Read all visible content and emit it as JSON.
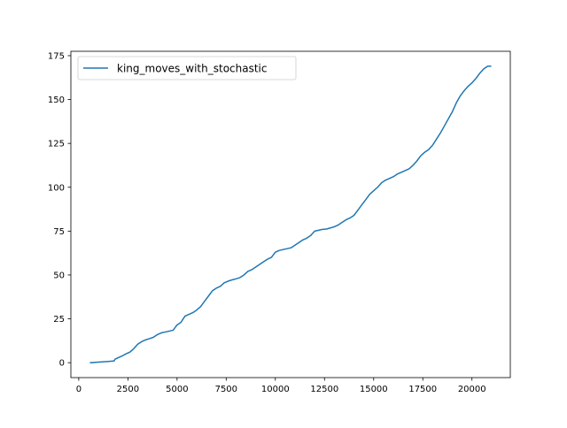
{
  "chart_data": {
    "type": "line",
    "title": "",
    "xlabel": "",
    "ylabel": "",
    "xlim": [
      -400,
      21950
    ],
    "ylim": [
      -8.5,
      177.5
    ],
    "xticks": [
      0,
      2500,
      5000,
      7500,
      10000,
      12500,
      15000,
      17500,
      20000
    ],
    "xtick_labels": [
      "0",
      "2500",
      "5000",
      "7500",
      "10000",
      "12500",
      "15000",
      "17500",
      "20000"
    ],
    "yticks": [
      0,
      25,
      50,
      75,
      100,
      125,
      150,
      175
    ],
    "ytick_labels": [
      "0",
      "25",
      "50",
      "75",
      "100",
      "125",
      "150",
      "175"
    ],
    "grid": false,
    "legend": {
      "position": "upper-left"
    },
    "series": [
      {
        "name": "king_moves_with_stochastic",
        "color": "#1f77b4",
        "x": [
          600,
          1000,
          1500,
          1800,
          1850,
          2000,
          2200,
          2400,
          2600,
          2800,
          3000,
          3200,
          3400,
          3600,
          3800,
          4000,
          4200,
          4400,
          4600,
          4800,
          5000,
          5200,
          5400,
          5600,
          5800,
          6000,
          6200,
          6400,
          6600,
          6800,
          7000,
          7200,
          7400,
          7600,
          7800,
          8000,
          8200,
          8400,
          8600,
          8800,
          9000,
          9200,
          9400,
          9600,
          9800,
          10000,
          10200,
          10400,
          10600,
          10800,
          11000,
          11200,
          11400,
          11600,
          11800,
          12000,
          12200,
          12400,
          12600,
          12800,
          13000,
          13200,
          13400,
          13600,
          13800,
          14000,
          14200,
          14400,
          14600,
          14800,
          15000,
          15200,
          15400,
          15600,
          15800,
          16000,
          16200,
          16400,
          16600,
          16800,
          17000,
          17200,
          17400,
          17600,
          17800,
          18000,
          18200,
          18400,
          18600,
          18800,
          19000,
          19200,
          19400,
          19600,
          19800,
          20000,
          20200,
          20400,
          20600,
          20800,
          20950
        ],
        "y": [
          0,
          0.3,
          0.7,
          1,
          2,
          2.8,
          3.8,
          5,
          6,
          8,
          10.5,
          12,
          13,
          13.7,
          14.5,
          16,
          17,
          17.5,
          18,
          18.5,
          21.5,
          23,
          26.5,
          27.5,
          28.5,
          30,
          32,
          35,
          38,
          41,
          42.5,
          43.5,
          45.5,
          46.5,
          47.2,
          47.8,
          48.5,
          50,
          52,
          53,
          54.5,
          56,
          57.5,
          59,
          60,
          63,
          64,
          64.5,
          65,
          65.5,
          67,
          68.5,
          70,
          71,
          72.5,
          75,
          75.5,
          76,
          76.2,
          76.8,
          77.5,
          78.5,
          80,
          81.5,
          82.5,
          84,
          87,
          90,
          93,
          96,
          98,
          100,
          102.5,
          104,
          105,
          106,
          107.5,
          108.5,
          109.5,
          110.5,
          112.5,
          115,
          118,
          120,
          121.5,
          124,
          127.5,
          131,
          135,
          139,
          143,
          148,
          152,
          155,
          157.5,
          159.5,
          162,
          165,
          167.5,
          169,
          169
        ]
      }
    ]
  }
}
